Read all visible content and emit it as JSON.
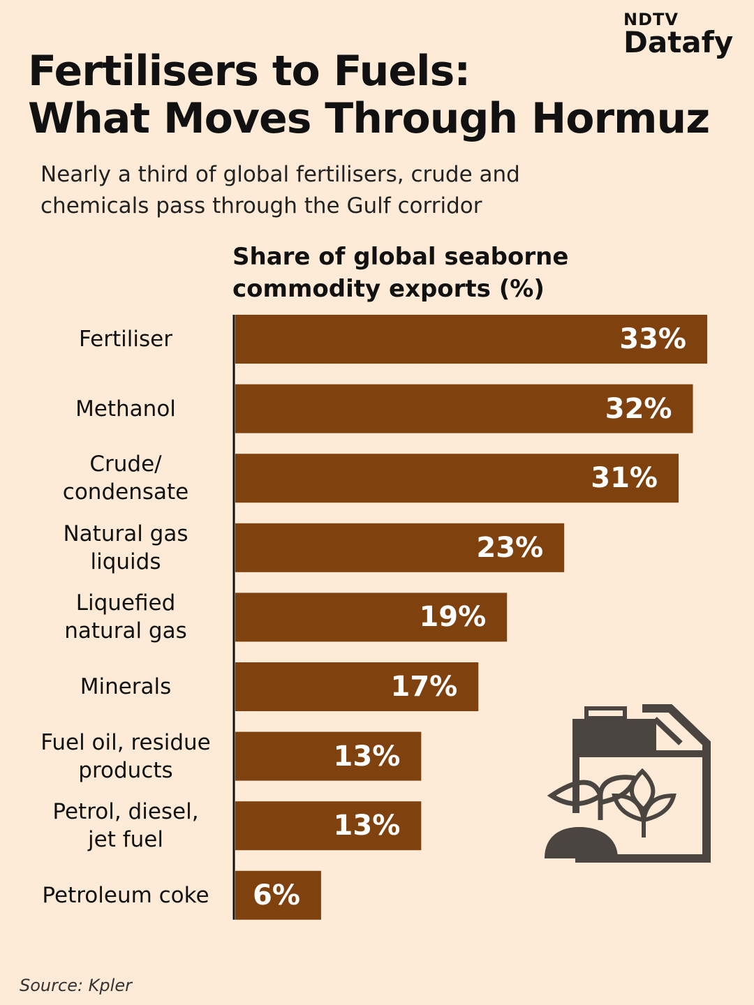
{
  "chart_data": {
    "type": "bar",
    "orientation": "horizontal",
    "title": "Fertilisers to Fuels:\nWhat Moves Through Hormuz",
    "subtitle": "Nearly a third of global fertilisers, crude and\nchemicals pass through the Gulf corridor",
    "axis_label": "Share of global seaborne\ncommodity exports (%)",
    "categories": [
      "Fertiliser",
      "Methanol",
      "Crude/\ncondensate",
      "Natural gas\nliquids",
      "Liquefied\nnatural gas",
      "Minerals",
      "Fuel oil, residue\nproducts",
      "Petrol, diesel,\njet fuel",
      "Petroleum coke"
    ],
    "values": [
      33,
      32,
      31,
      23,
      19,
      17,
      13,
      13,
      6
    ],
    "value_labels": [
      "33%",
      "32%",
      "31%",
      "23%",
      "19%",
      "17%",
      "13%",
      "13%",
      "6%"
    ],
    "color": "#7f410e",
    "source": "Source: Kpler",
    "brand_top": "NDTV",
    "brand": "Datafy"
  }
}
